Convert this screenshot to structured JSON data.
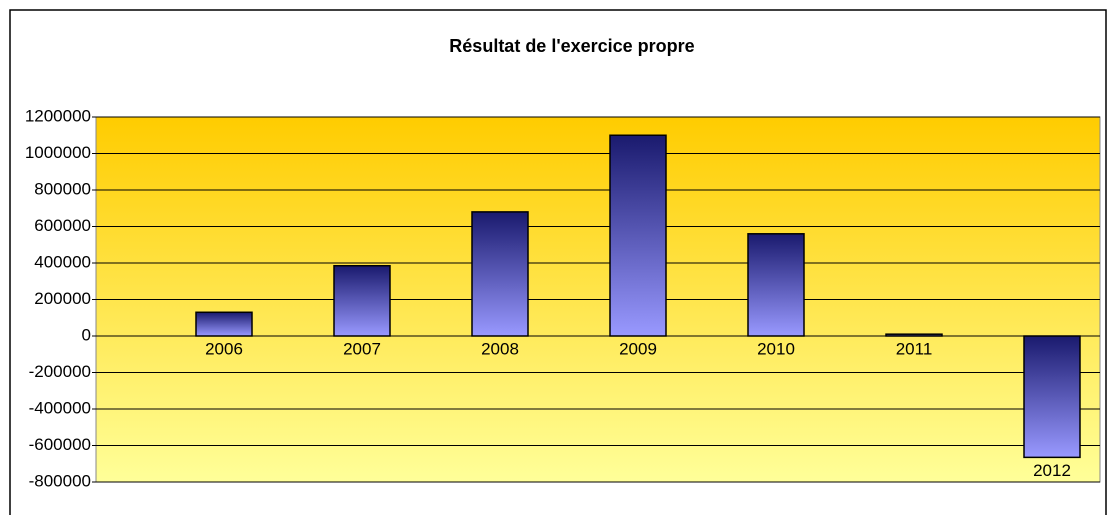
{
  "chart_data": {
    "type": "bar",
    "title": "Résultat de l'exercice propre",
    "categories": [
      "2006",
      "2007",
      "2008",
      "2009",
      "2010",
      "2011",
      "2012"
    ],
    "values": [
      130000,
      385000,
      680000,
      1100000,
      560000,
      10000,
      -665000
    ],
    "color": [
      "#1a1a6e",
      "#9999ff"
    ],
    "background": [
      "#ffcc00",
      "#ffff99"
    ],
    "ylim": [
      -800000,
      1200000
    ],
    "yticks": [
      -800000,
      -600000,
      -400000,
      -200000,
      0,
      200000,
      400000,
      600000,
      800000,
      1000000,
      1200000
    ],
    "grid": true
  }
}
